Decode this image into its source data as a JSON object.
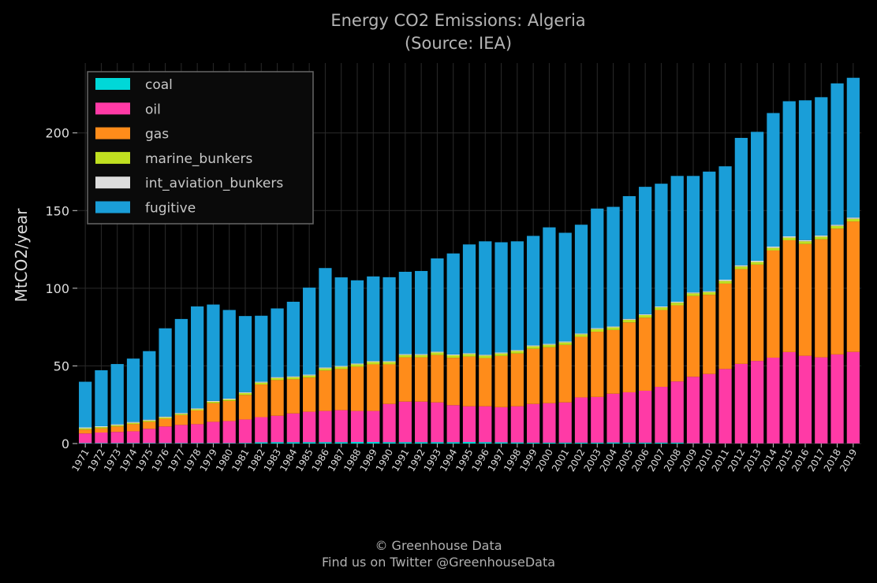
{
  "chart_data": {
    "type": "bar",
    "stacked": true,
    "title": "Energy CO2 Emissions: Algeria",
    "subtitle": "(Source: IEA)",
    "xlabel": "",
    "ylabel": "MtCO2/year",
    "ylim": [
      0,
      245
    ],
    "yticks": [
      0,
      50,
      100,
      150,
      200
    ],
    "grid": true,
    "legend_position": "top-left",
    "categories": [
      "1971",
      "1972",
      "1973",
      "1974",
      "1975",
      "1976",
      "1977",
      "1978",
      "1979",
      "1980",
      "1981",
      "1982",
      "1983",
      "1984",
      "1985",
      "1986",
      "1987",
      "1988",
      "1989",
      "1990",
      "1991",
      "1992",
      "1993",
      "1994",
      "1995",
      "1996",
      "1997",
      "1998",
      "1999",
      "2000",
      "2001",
      "2002",
      "2003",
      "2004",
      "2005",
      "2006",
      "2007",
      "2008",
      "2009",
      "2010",
      "2011",
      "2012",
      "2013",
      "2014",
      "2015",
      "2016",
      "2017",
      "2018",
      "2019"
    ],
    "series": [
      {
        "name": "coal",
        "color": "#00d8d8",
        "values": [
          0.3,
          0.3,
          0.3,
          0.3,
          0.3,
          0.3,
          0.3,
          0.3,
          0.3,
          0.3,
          0.4,
          0.8,
          0.9,
          0.9,
          0.9,
          0.9,
          0.9,
          1.0,
          1.0,
          0.9,
          0.9,
          0.9,
          0.9,
          0.9,
          1.0,
          0.9,
          0.8,
          0.7,
          0.6,
          0.6,
          0.6,
          0.6,
          0.6,
          0.7,
          0.6,
          0.6,
          0.6,
          0.6,
          0.2,
          0.2,
          0.1,
          0.1,
          0.1,
          0.1,
          0.1,
          0.1,
          0.1,
          0.1,
          0.1
        ]
      },
      {
        "name": "oil",
        "color": "#ff3aa6",
        "values": [
          6.2,
          6.8,
          7.2,
          7.6,
          9.2,
          10.7,
          11.7,
          12.2,
          13.7,
          14.2,
          15.1,
          16.2,
          17.0,
          18.5,
          19.6,
          20.1,
          20.6,
          20.0,
          20.0,
          24.6,
          26.1,
          26.1,
          25.6,
          23.8,
          23.0,
          23.1,
          22.6,
          23.3,
          24.9,
          25.4,
          25.9,
          29.1,
          29.4,
          31.4,
          32.4,
          33.4,
          35.9,
          39.4,
          42.8,
          44.6,
          47.9,
          51.2,
          53.1,
          55.2,
          58.8,
          56.4,
          55.4,
          57.3,
          58.9
        ]
      },
      {
        "name": "gas",
        "color": "#ff8c1a",
        "values": [
          2.5,
          2.7,
          3.5,
          4.6,
          4.5,
          5.0,
          6.3,
          8.8,
          12.0,
          13.0,
          15.8,
          21.0,
          23.0,
          22.0,
          22.0,
          26.0,
          26.5,
          28.5,
          30.0,
          25.5,
          28.5,
          28.5,
          30.5,
          30.5,
          32.0,
          31.0,
          33.0,
          34.0,
          35.5,
          36.0,
          37.0,
          39.0,
          42.0,
          41.0,
          45.0,
          47.0,
          49.5,
          49.0,
          52.0,
          51.0,
          55.0,
          61.0,
          62.0,
          69.0,
          72.0,
          72.0,
          76.0,
          81.0,
          84.0
        ]
      },
      {
        "name": "marine_bunkers",
        "color": "#c0e020",
        "values": [
          0.8,
          0.8,
          0.8,
          0.8,
          0.8,
          0.8,
          0.8,
          0.8,
          0.9,
          0.9,
          1.2,
          1.2,
          1.3,
          1.3,
          1.3,
          1.4,
          1.4,
          1.5,
          1.5,
          1.5,
          1.5,
          1.5,
          1.6,
          1.6,
          1.6,
          1.6,
          1.6,
          1.6,
          1.6,
          1.6,
          1.6,
          1.6,
          1.7,
          1.7,
          1.7,
          1.7,
          1.7,
          1.7,
          1.7,
          1.7,
          1.7,
          1.7,
          1.7,
          1.7,
          1.7,
          1.7,
          1.7,
          1.7,
          1.7
        ]
      },
      {
        "name": "int_aviation_bunkers",
        "color": "#dddddd",
        "values": [
          0.6,
          0.6,
          0.6,
          0.6,
          0.6,
          0.6,
          0.6,
          0.6,
          0.6,
          0.6,
          0.6,
          0.6,
          0.6,
          0.6,
          0.6,
          0.6,
          0.6,
          0.6,
          0.6,
          0.6,
          0.6,
          0.6,
          0.6,
          0.6,
          0.6,
          0.6,
          0.6,
          0.6,
          0.6,
          0.6,
          0.6,
          0.6,
          0.6,
          0.6,
          0.6,
          0.6,
          0.6,
          0.6,
          0.6,
          0.6,
          0.8,
          0.8,
          0.8,
          0.8,
          0.8,
          0.8,
          0.8,
          0.8,
          0.8
        ]
      },
      {
        "name": "fugitive",
        "color": "#1a9ed8",
        "values": [
          29.4,
          36.0,
          38.8,
          40.8,
          44.1,
          56.8,
          60.5,
          65.6,
          62.0,
          57.0,
          49.0,
          42.5,
          44.2,
          48.0,
          56.0,
          64.0,
          57.0,
          53.5,
          54.5,
          54.0,
          53.0,
          53.5,
          60.0,
          65.0,
          70.0,
          73.0,
          71.0,
          70.0,
          70.5,
          75.0,
          70.0,
          70.0,
          77.0,
          77.0,
          79.0,
          82.0,
          79.0,
          81.0,
          75.0,
          77.0,
          73.0,
          82.0,
          83.0,
          86.0,
          87.0,
          90.0,
          89.0,
          91.0,
          90.0
        ]
      }
    ]
  },
  "footer": {
    "line1": "© Greenhouse Data",
    "line2": "Find us on Twitter @GreenhouseData"
  }
}
